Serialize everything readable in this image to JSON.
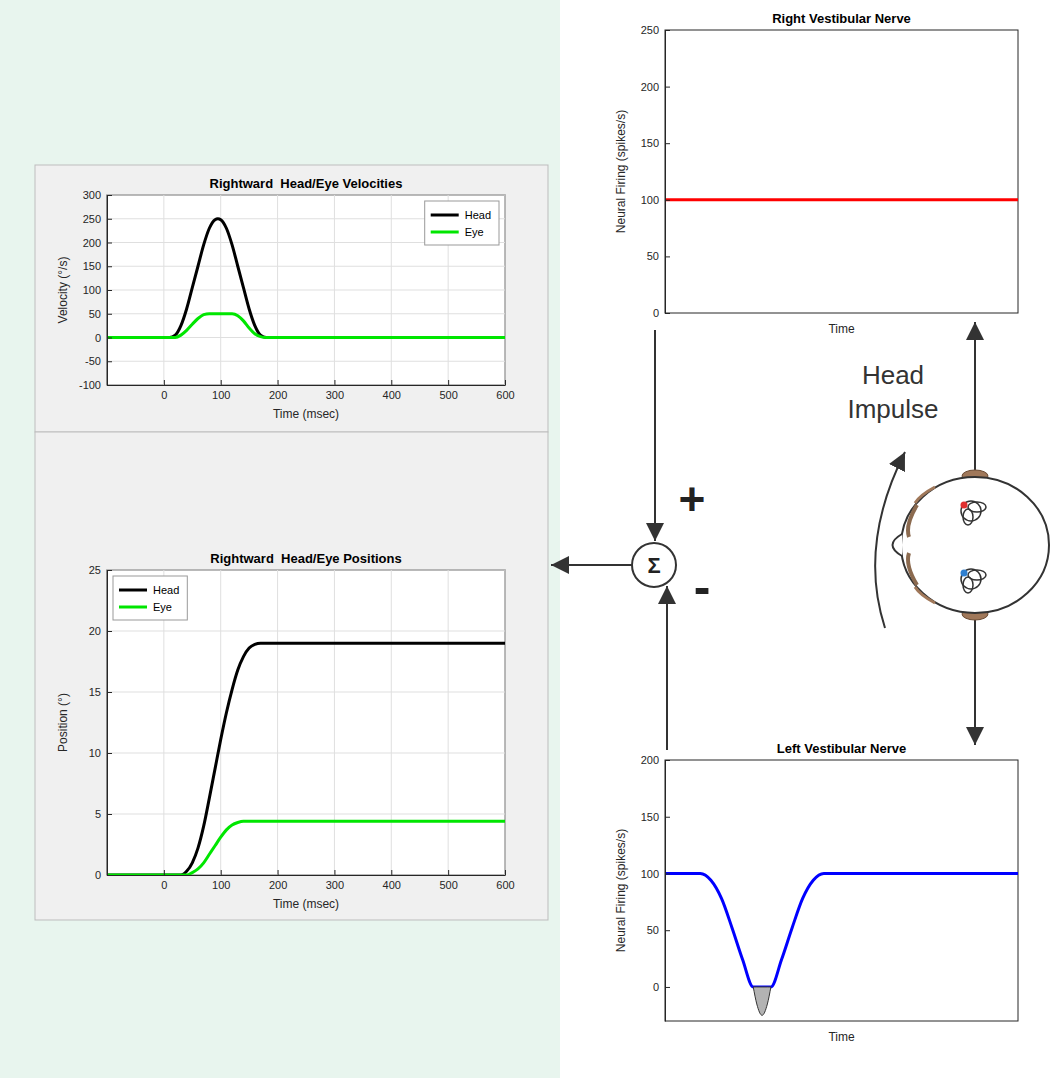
{
  "chart_data": [
    {
      "type": "line",
      "title": "Rightward  Head/Eye Velocities",
      "xlabel": "Time (msec)",
      "ylabel": "Velocity (°/s)",
      "xlim": [
        -100,
        600
      ],
      "xticks": [
        0,
        100,
        200,
        300,
        400,
        500,
        600
      ],
      "ylim": [
        -100,
        300
      ],
      "yticks": [
        -100,
        -50,
        0,
        50,
        100,
        150,
        200,
        250,
        300
      ],
      "grid": true,
      "legend": "upper right",
      "series": [
        {
          "name": "Head",
          "color": "#000000",
          "x": [
            -100,
            0,
            10,
            20,
            30,
            40,
            50,
            60,
            70,
            80,
            90,
            95,
            100,
            110,
            120,
            130,
            140,
            150,
            160,
            170,
            180,
            600
          ],
          "values": [
            0,
            0,
            0,
            5,
            25,
            60,
            105,
            150,
            195,
            230,
            248,
            250,
            248,
            230,
            195,
            150,
            105,
            60,
            25,
            5,
            0,
            0
          ]
        },
        {
          "name": "Eye",
          "color": "#00e600",
          "x": [
            -100,
            0,
            20,
            30,
            40,
            50,
            60,
            70,
            80,
            120,
            130,
            140,
            150,
            160,
            170,
            180,
            600
          ],
          "values": [
            0,
            0,
            0,
            5,
            15,
            28,
            40,
            48,
            50,
            50,
            46,
            35,
            20,
            8,
            2,
            0,
            0
          ]
        }
      ]
    },
    {
      "type": "line",
      "title": "Rightward  Head/Eye Positions",
      "xlabel": "Time (msec)",
      "ylabel": "Position (°)",
      "xlim": [
        -100,
        600
      ],
      "xticks": [
        0,
        100,
        200,
        300,
        400,
        500,
        600
      ],
      "ylim": [
        0,
        25
      ],
      "yticks": [
        0,
        5,
        10,
        15,
        20,
        25
      ],
      "grid": true,
      "legend": "upper left",
      "series": [
        {
          "name": "Head",
          "color": "#000000",
          "x": [
            -100,
            30,
            40,
            50,
            60,
            70,
            80,
            90,
            100,
            110,
            120,
            130,
            140,
            150,
            160,
            170,
            600
          ],
          "values": [
            0,
            0,
            0.3,
            1,
            2.2,
            4,
            6.3,
            8.7,
            11.1,
            13.3,
            15.2,
            16.8,
            17.9,
            18.6,
            18.9,
            19,
            19
          ]
        },
        {
          "name": "Eye",
          "color": "#00e600",
          "x": [
            -100,
            40,
            50,
            60,
            70,
            80,
            90,
            100,
            110,
            120,
            130,
            140,
            600
          ],
          "values": [
            0,
            0,
            0.2,
            0.5,
            1,
            1.7,
            2.4,
            3.1,
            3.7,
            4.1,
            4.3,
            4.4,
            4.4
          ]
        }
      ]
    },
    {
      "type": "line",
      "title": "Right Vestibular Nerve",
      "xlabel": "Time",
      "ylabel": "Neural Firing (spikes/s)",
      "xlim": [
        0,
        100
      ],
      "ylim": [
        0,
        250
      ],
      "yticks": [
        0,
        50,
        100,
        150,
        200,
        250
      ],
      "grid": false,
      "tick_labels": "y",
      "series": [
        {
          "color": "#ff0000",
          "x": [
            0,
            100
          ],
          "values": [
            100,
            100
          ]
        }
      ]
    },
    {
      "type": "line",
      "title": "Left Vestibular Nerve",
      "xlabel": "Time",
      "ylabel": "Neural Firing (spikes/s)",
      "xlim": [
        0,
        100
      ],
      "ylim": [
        -30,
        200
      ],
      "yticks": [
        0,
        50,
        100,
        150,
        200
      ],
      "grid": false,
      "tick_labels": "y",
      "series": [
        {
          "type": "line",
          "color": "#0000ff",
          "x": [
            0,
            10,
            13,
            16,
            19,
            22,
            25,
            30,
            33,
            36,
            39,
            42,
            45,
            100
          ],
          "values": [
            100,
            100,
            94,
            78,
            52,
            24,
            0,
            0,
            24,
            52,
            78,
            94,
            100,
            100
          ]
        },
        {
          "type": "area",
          "color": "#b3b3b3",
          "x": [
            25,
            26,
            27.5,
            29,
            30
          ],
          "values": [
            0,
            -15,
            -25,
            -15,
            0
          ]
        }
      ]
    }
  ],
  "diagram": {
    "sum_symbol": "Σ",
    "plus": "+",
    "minus": "-",
    "arrow_label": [
      "Head",
      "Impulse"
    ]
  }
}
